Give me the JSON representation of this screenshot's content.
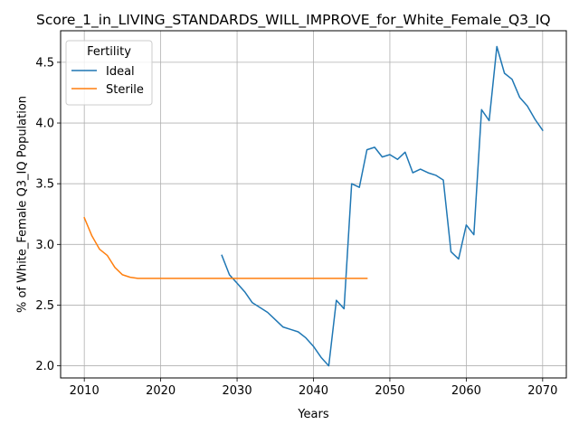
{
  "chart_data": {
    "type": "line",
    "title": "Score_1_in_LIVING_STANDARDS_WILL_IMPROVE_for_White_Female_Q3_IQ",
    "xlabel": "Years",
    "ylabel": "% of White_Female Q3_IQ Population",
    "xlim": [
      2006.9,
      2073.1
    ],
    "ylim": [
      1.9,
      4.76
    ],
    "x_ticks": [
      2010,
      2020,
      2030,
      2040,
      2050,
      2060,
      2070
    ],
    "y_ticks": [
      2.0,
      2.5,
      3.0,
      3.5,
      4.0,
      4.5
    ],
    "x_tick_labels": [
      "2010",
      "2020",
      "2030",
      "2040",
      "2050",
      "2060",
      "2070"
    ],
    "y_tick_labels": [
      "2.0",
      "2.5",
      "3.0",
      "3.5",
      "4.0",
      "4.5"
    ],
    "grid": true,
    "legend": {
      "title": "Fertility",
      "placement": "top-left"
    },
    "series": [
      {
        "name": "Ideal",
        "color": "#1f77b4",
        "x": [
          2028,
          2029,
          2030,
          2031,
          2032,
          2033,
          2034,
          2035,
          2036,
          2037,
          2038,
          2039,
          2040,
          2041,
          2042,
          2043,
          2044,
          2045,
          2046,
          2047,
          2048,
          2049,
          2050,
          2051,
          2052,
          2053,
          2054,
          2055,
          2056,
          2057,
          2058,
          2059,
          2060,
          2061,
          2062,
          2063,
          2064,
          2065,
          2066,
          2067,
          2068,
          2069,
          2070
        ],
        "y": [
          2.91,
          2.75,
          2.68,
          2.61,
          2.52,
          2.48,
          2.44,
          2.38,
          2.32,
          2.3,
          2.28,
          2.23,
          2.16,
          2.07,
          2.0,
          2.54,
          2.47,
          3.5,
          3.47,
          3.78,
          3.8,
          3.72,
          3.74,
          3.7,
          3.76,
          3.59,
          3.62,
          3.59,
          3.57,
          3.53,
          2.94,
          2.88,
          3.16,
          3.08,
          4.11,
          4.02,
          4.63,
          4.41,
          4.36,
          4.21,
          4.14,
          4.03,
          3.94
        ]
      },
      {
        "name": "Sterile",
        "color": "#ff7f0e",
        "x": [
          2010,
          2011,
          2012,
          2013,
          2014,
          2015,
          2016,
          2017,
          2018,
          2019,
          2020,
          2021,
          2022,
          2023,
          2024,
          2025,
          2026,
          2027,
          2028,
          2029,
          2030,
          2031,
          2032,
          2033,
          2034,
          2035,
          2036,
          2037,
          2038,
          2039,
          2040,
          2041,
          2042,
          2043,
          2044,
          2045,
          2046,
          2047
        ],
        "y": [
          3.22,
          3.07,
          2.96,
          2.91,
          2.81,
          2.75,
          2.73,
          2.72,
          2.72,
          2.72,
          2.72,
          2.72,
          2.72,
          2.72,
          2.72,
          2.72,
          2.72,
          2.72,
          2.72,
          2.72,
          2.72,
          2.72,
          2.72,
          2.72,
          2.72,
          2.72,
          2.72,
          2.72,
          2.72,
          2.72,
          2.72,
          2.72,
          2.72,
          2.72,
          2.72,
          2.72,
          2.72,
          2.72
        ]
      }
    ]
  }
}
